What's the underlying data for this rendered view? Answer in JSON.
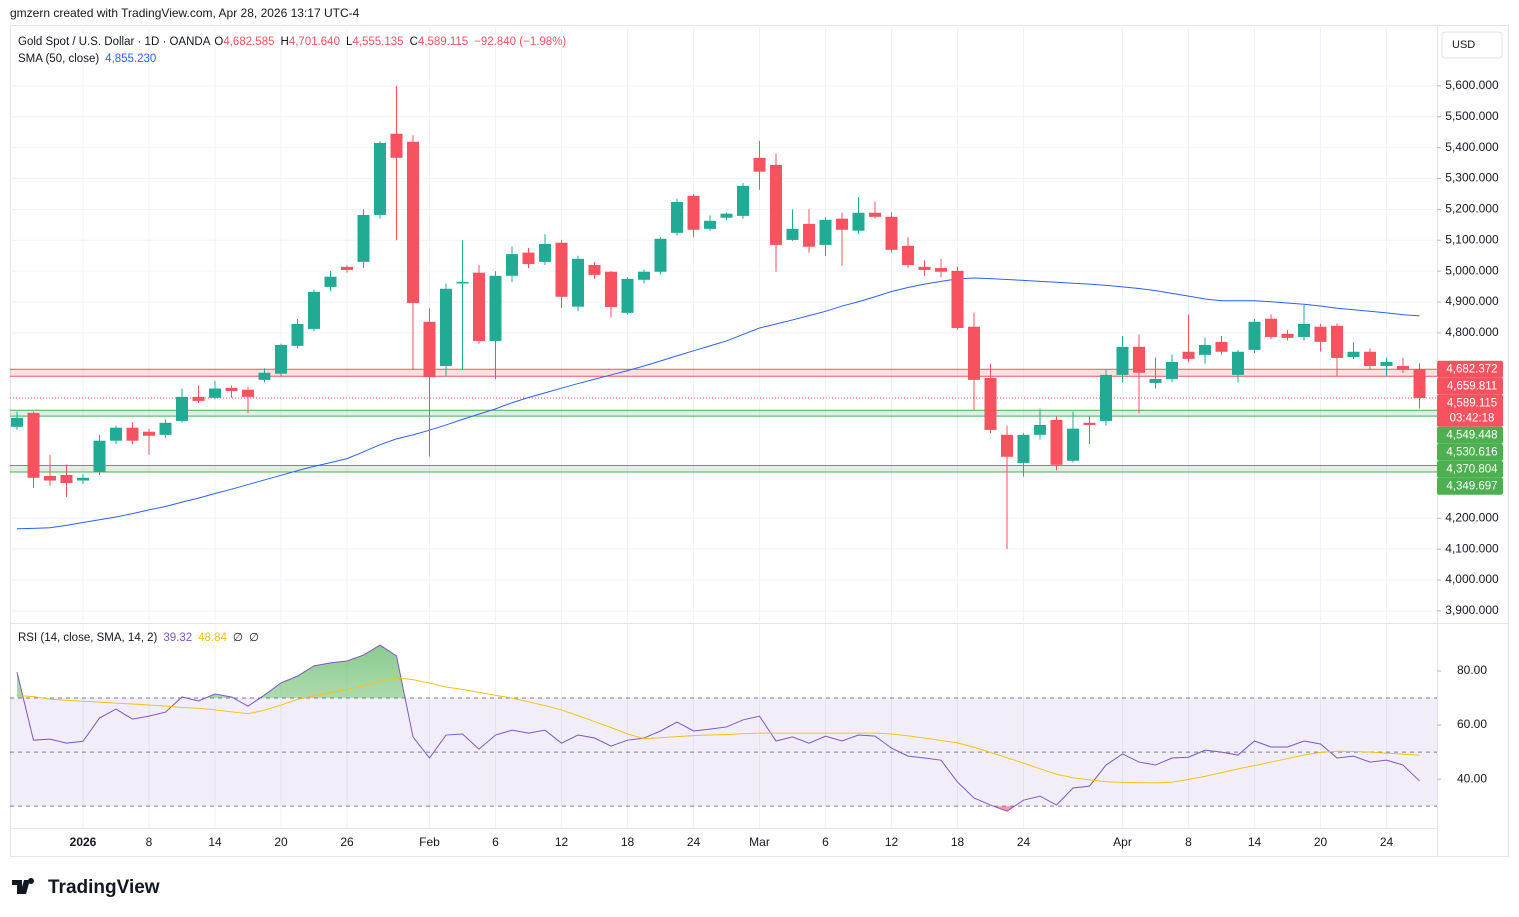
{
  "header": {
    "credit": "gmzern created with TradingView.com, Apr 28, 2026 13:17 UTC-4",
    "symbol": "Gold Spot / U.S. Dollar · 1D · OANDA",
    "ohlc": [
      {
        "key": "O",
        "value": "4,682.585"
      },
      {
        "key": "H",
        "value": "4,701.640"
      },
      {
        "key": "L",
        "value": "4,555.135"
      },
      {
        "key": "C",
        "value": "4,589.115"
      }
    ],
    "change": "−92.840 (−1.98%)",
    "currency": "USD"
  },
  "footer": {
    "logo": "TradingView"
  },
  "chart_data": [
    {
      "type": "candlestick",
      "categories": [
        null,
        null,
        null,
        null,
        "2026",
        null,
        null,
        null,
        "8",
        null,
        null,
        null,
        "14",
        null,
        null,
        null,
        "20",
        null,
        null,
        null,
        "26",
        null,
        null,
        null,
        null,
        "Feb",
        null,
        null,
        null,
        "6",
        null,
        null,
        null,
        "12",
        null,
        null,
        null,
        "18",
        null,
        null,
        null,
        "24",
        null,
        null,
        null,
        "Mar",
        null,
        null,
        null,
        "6",
        null,
        null,
        null,
        "12",
        null,
        null,
        null,
        "18",
        null,
        null,
        null,
        "24",
        null,
        null,
        null,
        null,
        null,
        "Apr",
        null,
        null,
        null,
        "8",
        null,
        null,
        null,
        "14",
        null,
        null,
        null,
        "20",
        null,
        null,
        null,
        "24",
        null,
        null
      ],
      "open": [
        4496,
        4541,
        4337,
        4340,
        4322,
        4350,
        4451,
        4493,
        4480,
        4470,
        4515,
        4593,
        4590,
        4622,
        4616,
        4648,
        4668,
        4758,
        4813,
        4949,
        5014,
        5030,
        5182,
        5445,
        5419,
        4836,
        4693,
        4960,
        4995,
        4774,
        4985,
        5060,
        5030,
        5092,
        4885,
        5020,
        4998,
        4865,
        4972,
        4998,
        5124,
        5244,
        5137,
        5173,
        5179,
        5367,
        5344,
        5101,
        5153,
        5085,
        5170,
        5131,
        5189,
        5176,
        5082,
        5014,
        5010,
        5001,
        4820,
        4654,
        4470,
        4379,
        4470,
        4518,
        4386,
        4509,
        4515,
        4664,
        4755,
        4638,
        4651,
        4739,
        4729,
        4771,
        4664,
        4745,
        4846,
        4797,
        4787,
        4820,
        4823,
        4722,
        4739,
        4693,
        4693,
        4682.585
      ],
      "high": [
        4545,
        4545,
        4405,
        4373,
        4343,
        4470,
        4500,
        4510,
        4490,
        4520,
        4620,
        4630,
        4645,
        4630,
        4625,
        4685,
        4765,
        4845,
        4940,
        5000,
        5020,
        5200,
        5420,
        5600,
        5440,
        4880,
        4960,
        5100,
        5020,
        5000,
        5080,
        5075,
        5120,
        5100,
        5050,
        5030,
        5000,
        4980,
        5005,
        5110,
        5235,
        5250,
        5180,
        5190,
        5285,
        5422,
        5380,
        5200,
        5200,
        5175,
        5190,
        5240,
        5225,
        5190,
        5110,
        5035,
        5040,
        5015,
        4865,
        4700,
        4500,
        4475,
        4555,
        4530,
        4545,
        4530,
        4680,
        4790,
        4795,
        4720,
        4730,
        4860,
        4785,
        4790,
        4745,
        4845,
        4860,
        4810,
        4890,
        4830,
        4830,
        4770,
        4750,
        4720,
        4720,
        4701.64
      ],
      "low": [
        4486,
        4298,
        4305,
        4269,
        4311,
        4340,
        4440,
        4440,
        4405,
        4460,
        4510,
        4573,
        4585,
        4590,
        4541,
        4640,
        4660,
        4750,
        4805,
        4935,
        4995,
        5010,
        5170,
        5100,
        4680,
        4400,
        4660,
        4680,
        4765,
        4650,
        4965,
        5010,
        5020,
        4880,
        4870,
        4975,
        4850,
        4860,
        4960,
        4990,
        5115,
        5110,
        5130,
        5165,
        5170,
        5263,
        4998,
        5098,
        5060,
        5050,
        5017,
        5120,
        5170,
        5060,
        5010,
        4985,
        4980,
        4810,
        4550,
        4475,
        4100,
        4335,
        4455,
        4355,
        4380,
        4440,
        4500,
        4640,
        4540,
        4620,
        4640,
        4705,
        4700,
        4730,
        4640,
        4735,
        4780,
        4775,
        4775,
        4740,
        4660,
        4715,
        4680,
        4660,
        4670,
        4555.135
      ],
      "close": [
        4525,
        4331,
        4322,
        4314,
        4331,
        4451,
        4493,
        4451,
        4467,
        4509,
        4593,
        4580,
        4620,
        4612,
        4593,
        4671,
        4761,
        4829,
        4933,
        4982,
        5004,
        5182,
        5415,
        5367,
        4897,
        4657,
        4943,
        4965,
        4774,
        4985,
        5055,
        5023,
        5088,
        4917,
        5040,
        4988,
        4884,
        4975,
        4998,
        5105,
        5224,
        5134,
        5163,
        5186,
        5276,
        5322,
        5085,
        5137,
        5079,
        5166,
        5134,
        5189,
        5176,
        5069,
        5020,
        5004,
        4998,
        4816,
        4648,
        4486,
        4399,
        4470,
        4502,
        4373,
        4490,
        4502,
        4664,
        4755,
        4671,
        4651,
        4706,
        4716,
        4761,
        4739,
        4739,
        4836,
        4787,
        4784,
        4829,
        4771,
        4719,
        4739,
        4693,
        4706,
        4680,
        4589.115
      ],
      "up_color": "#22ab94",
      "down_color": "#f7525f",
      "overlays": [
        {
          "name": "SMA (50, close)",
          "value_label": "4,855.230",
          "color": "#2962ff",
          "values": [
            4166,
            4167,
            4169,
            4177,
            4186,
            4195,
            4204,
            4215,
            4227,
            4238,
            4252,
            4265,
            4280,
            4294,
            4309,
            4324,
            4339,
            4354,
            4368,
            4380,
            4393,
            4415,
            4438,
            4457,
            4470,
            4485,
            4502,
            4520,
            4537,
            4554,
            4574,
            4591,
            4606,
            4621,
            4636,
            4650,
            4664,
            4678,
            4693,
            4709,
            4726,
            4742,
            4758,
            4774,
            4795,
            4816,
            4829,
            4842,
            4856,
            4870,
            4887,
            4901,
            4917,
            4934,
            4947,
            4958,
            4967,
            4975,
            4978,
            4976,
            4973,
            4970,
            4967,
            4964,
            4961,
            4958,
            4954,
            4949,
            4944,
            4937,
            4928,
            4919,
            4910,
            4904,
            4904,
            4904,
            4901,
            4897,
            4893,
            4887,
            4880,
            4875,
            4870,
            4865,
            4859,
            4855.23
          ]
        }
      ],
      "zones": [
        {
          "top": {
            "value": 4682.372,
            "label": "4,682.372"
          },
          "bottom": {
            "value": 4659.811,
            "label": "4,659.811"
          },
          "color": "#f7525f"
        },
        {
          "top": {
            "value": 4549.448,
            "label": "4,549.448"
          },
          "bottom": {
            "value": 4530.616,
            "label": "4,530.616"
          },
          "color": "#4caf50"
        },
        {
          "top": {
            "value": 4370.804,
            "label": "4,370.804"
          },
          "bottom": {
            "value": 4349.697,
            "label": "4,349.697"
          },
          "color": "#4caf50"
        }
      ],
      "last": {
        "value": 4589.115,
        "label": "4,589.115",
        "countdown": "03:42:18",
        "color": "#f7525f"
      },
      "ylim": [
        3864,
        5797
      ],
      "yticks": [
        {
          "value": 3900,
          "label": "3,900.000"
        },
        {
          "value": 4000,
          "label": "4,000.000"
        },
        {
          "value": 4100,
          "label": "4,100.000"
        },
        {
          "value": 4200,
          "label": "4,200.000"
        },
        {
          "value": 4800,
          "label": "4,800.000"
        },
        {
          "value": 4900,
          "label": "4,900.000"
        },
        {
          "value": 5000,
          "label": "5,000.000"
        },
        {
          "value": 5100,
          "label": "5,100.000"
        },
        {
          "value": 5200,
          "label": "5,200.000"
        },
        {
          "value": 5300,
          "label": "5,300.000"
        },
        {
          "value": 5400,
          "label": "5,400.000"
        },
        {
          "value": 5500,
          "label": "5,500.000"
        },
        {
          "value": 5600,
          "label": "5,600.000"
        }
      ],
      "grid": true
    },
    {
      "type": "line",
      "series": [
        {
          "name": "RSI (14, close, SMA, 14, 2)",
          "value_label": "39.32",
          "color": "#7e57c2",
          "values": [
            79.6,
            54.4,
            54.8,
            53.3,
            54,
            62.6,
            65.9,
            62.2,
            63.3,
            64.8,
            70.4,
            68.9,
            71.5,
            70.4,
            67,
            71.1,
            75.6,
            78.1,
            81.9,
            83,
            83.7,
            85.9,
            89.6,
            85.6,
            55.6,
            47.8,
            56.3,
            56.7,
            51.1,
            56.3,
            58.1,
            57,
            58.1,
            53.3,
            56.3,
            55.2,
            52.2,
            54.4,
            55.2,
            57.8,
            61.1,
            57.8,
            58.5,
            59.3,
            61.9,
            63.3,
            54.1,
            55.6,
            53.3,
            55.9,
            54.1,
            56.3,
            55.9,
            51.5,
            48.5,
            47.8,
            47,
            38.9,
            33,
            30.4,
            28.1,
            32.2,
            33.7,
            30.4,
            36.7,
            37.4,
            45.2,
            49.3,
            46.3,
            45.2,
            47.8,
            48.1,
            50.7,
            50,
            48.9,
            54.1,
            51.9,
            51.9,
            54.1,
            53,
            47.8,
            48.5,
            46.3,
            47,
            45.2,
            39.32
          ]
        },
        {
          "value_label": "48.84",
          "color": "#f2c318",
          "values": [
            71,
            70.5,
            69.6,
            69.2,
            68.8,
            68.5,
            68.1,
            67.8,
            67.4,
            67,
            66.5,
            66.2,
            65.6,
            64.9,
            64.2,
            65.5,
            67.4,
            69.5,
            70.8,
            72,
            73.2,
            74.6,
            76.2,
            77.5,
            76.8,
            75.5,
            74.1,
            73.2,
            72.1,
            71,
            70,
            68.6,
            67.2,
            65.6,
            63.5,
            61.3,
            59.1,
            56.7,
            55,
            55.3,
            55.7,
            56.1,
            56.3,
            56.5,
            56.8,
            57,
            57,
            57,
            57,
            57,
            57,
            57,
            57,
            56.7,
            56,
            55.2,
            54.3,
            53.4,
            51.8,
            49.9,
            47.9,
            45.9,
            43.8,
            41.8,
            40.5,
            39.7,
            39,
            38.8,
            38.7,
            38.6,
            38.9,
            39.9,
            41,
            42.4,
            43.8,
            45,
            46.3,
            47.6,
            48.9,
            49.9,
            50.3,
            50.2,
            50,
            49.6,
            49.2,
            48.84
          ]
        }
      ],
      "extra_labels": [
        "∅",
        "∅"
      ],
      "band": [
        30,
        70
      ],
      "hlines": [
        30,
        50,
        70
      ],
      "ylim": [
        21.9,
        97.4
      ],
      "yticks": [
        {
          "value": 40,
          "label": "40.00"
        },
        {
          "value": 60,
          "label": "60.00"
        },
        {
          "value": 80,
          "label": "80.00"
        }
      ]
    }
  ]
}
